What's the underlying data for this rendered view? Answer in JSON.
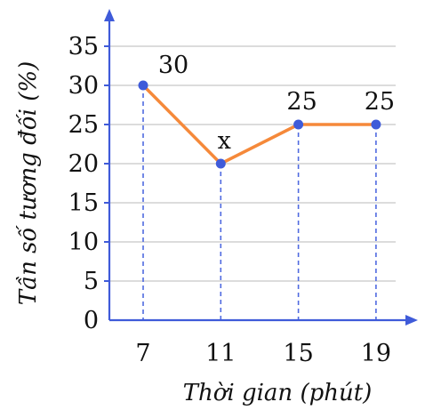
{
  "chart_data": {
    "type": "line",
    "title": "",
    "xlabel": "Thời gian (phút)",
    "ylabel": "Tần số tương đối (%)",
    "x": [
      7,
      11,
      15,
      19
    ],
    "categories": [
      "7",
      "11",
      "15",
      "19"
    ],
    "ylim": [
      0,
      35
    ],
    "yticks": [
      0,
      5,
      10,
      15,
      20,
      25,
      30,
      35
    ],
    "series": [
      {
        "values": [
          30,
          20,
          25,
          25
        ],
        "data_labels": [
          "30",
          "x",
          "25",
          "25"
        ]
      }
    ],
    "grid": true,
    "colors": {
      "line": "#f5893a",
      "axis": "#3f5bd9",
      "point": "#3f5bd9",
      "grid": "#c8c8c8"
    }
  }
}
